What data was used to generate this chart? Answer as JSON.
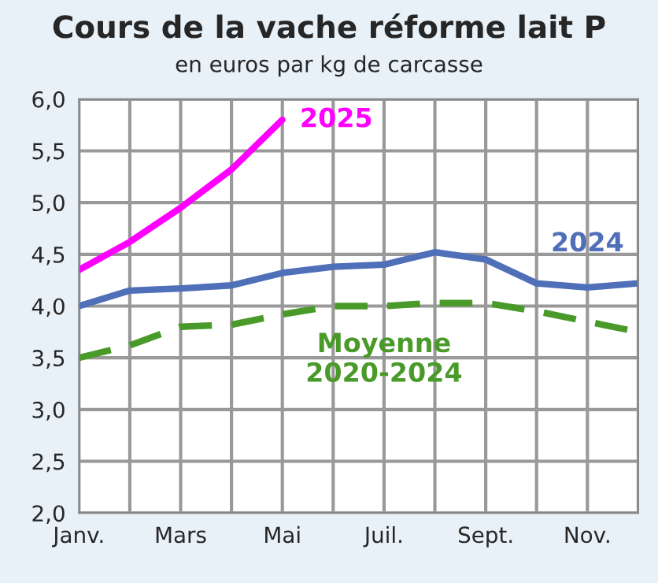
{
  "chart_data": {
    "type": "line",
    "title": "Cours de la vache réforme lait P",
    "subtitle": "en euros par kg de carcasse",
    "categories": [
      "Janv.",
      null,
      "Mars",
      null,
      "Mai",
      null,
      "Juil.",
      null,
      "Sept.",
      null,
      "Nov.",
      null
    ],
    "series": [
      {
        "name": "2025",
        "color": "#ff00ff",
        "values": [
          4.35,
          4.62,
          4.95,
          5.32,
          5.8,
          null,
          null,
          null,
          null,
          null,
          null,
          null
        ]
      },
      {
        "name": "2024",
        "color": "#4f6fb8",
        "values": [
          4.0,
          4.15,
          4.17,
          4.2,
          4.32,
          4.38,
          4.4,
          4.52,
          4.45,
          4.22,
          4.18,
          4.22
        ]
      },
      {
        "name": "Moyenne\n2020-2024",
        "color": "#4a9a2a",
        "line_style": "dashed",
        "values": [
          3.5,
          3.62,
          3.8,
          3.82,
          3.92,
          4.0,
          4.0,
          4.03,
          4.03,
          3.95,
          3.85,
          3.75
        ]
      }
    ],
    "ylim": [
      2,
      6
    ],
    "yticks": [
      {
        "value": 2,
        "label": "2,0"
      },
      {
        "value": 2.5,
        "label": "2,5"
      },
      {
        "value": 3,
        "label": "3,0"
      },
      {
        "value": 3.5,
        "label": "3,5"
      },
      {
        "value": 4,
        "label": "4,0"
      },
      {
        "value": 4.5,
        "label": "4,5"
      },
      {
        "value": 5,
        "label": "5,0"
      },
      {
        "value": 5.5,
        "label": "5,5"
      },
      {
        "value": 6,
        "label": "6,0"
      }
    ],
    "grid": true,
    "legend": false
  }
}
